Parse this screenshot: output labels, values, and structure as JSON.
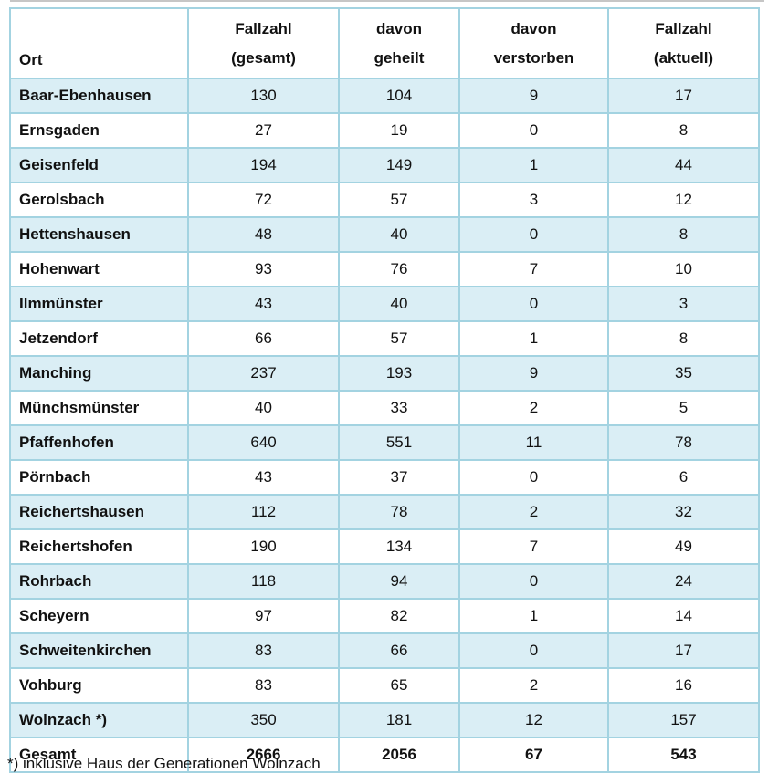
{
  "colors": {
    "row_shade": "#daeef5",
    "table_border": "#a3d3e1",
    "top_rule": "#c6c6c6",
    "text": "#111111"
  },
  "table": {
    "headers": [
      {
        "lines": [
          "Ort"
        ]
      },
      {
        "lines": [
          "Fallzahl",
          "(gesamt)"
        ]
      },
      {
        "lines": [
          "davon",
          "geheilt"
        ]
      },
      {
        "lines": [
          "davon",
          "verstorben"
        ]
      },
      {
        "lines": [
          "Fallzahl",
          "(aktuell)"
        ]
      }
    ],
    "rows": [
      {
        "ort": "Baar-Ebenhausen",
        "gesamt": "130",
        "geheilt": "104",
        "verstorben": "9",
        "aktuell": "17"
      },
      {
        "ort": "Ernsgaden",
        "gesamt": "27",
        "geheilt": "19",
        "verstorben": "0",
        "aktuell": "8"
      },
      {
        "ort": "Geisenfeld",
        "gesamt": "194",
        "geheilt": "149",
        "verstorben": "1",
        "aktuell": "44"
      },
      {
        "ort": "Gerolsbach",
        "gesamt": "72",
        "geheilt": "57",
        "verstorben": "3",
        "aktuell": "12"
      },
      {
        "ort": "Hettenshausen",
        "gesamt": "48",
        "geheilt": "40",
        "verstorben": "0",
        "aktuell": "8"
      },
      {
        "ort": "Hohenwart",
        "gesamt": "93",
        "geheilt": "76",
        "verstorben": "7",
        "aktuell": "10"
      },
      {
        "ort": "Ilmmünster",
        "gesamt": "43",
        "geheilt": "40",
        "verstorben": "0",
        "aktuell": "3"
      },
      {
        "ort": "Jetzendorf",
        "gesamt": "66",
        "geheilt": "57",
        "verstorben": "1",
        "aktuell": "8"
      },
      {
        "ort": "Manching",
        "gesamt": "237",
        "geheilt": "193",
        "verstorben": "9",
        "aktuell": "35"
      },
      {
        "ort": "Münchsmünster",
        "gesamt": "40",
        "geheilt": "33",
        "verstorben": "2",
        "aktuell": "5"
      },
      {
        "ort": "Pfaffenhofen",
        "gesamt": "640",
        "geheilt": "551",
        "verstorben": "11",
        "aktuell": "78"
      },
      {
        "ort": "Pörnbach",
        "gesamt": "43",
        "geheilt": "37",
        "verstorben": "0",
        "aktuell": "6"
      },
      {
        "ort": "Reichertshausen",
        "gesamt": "112",
        "geheilt": "78",
        "verstorben": "2",
        "aktuell": "32"
      },
      {
        "ort": "Reichertshofen",
        "gesamt": "190",
        "geheilt": "134",
        "verstorben": "7",
        "aktuell": "49"
      },
      {
        "ort": "Rohrbach",
        "gesamt": "118",
        "geheilt": "94",
        "verstorben": "0",
        "aktuell": "24"
      },
      {
        "ort": "Scheyern",
        "gesamt": "97",
        "geheilt": "82",
        "verstorben": "1",
        "aktuell": "14"
      },
      {
        "ort": "Schweitenkirchen",
        "gesamt": "83",
        "geheilt": "66",
        "verstorben": "0",
        "aktuell": "17"
      },
      {
        "ort": "Vohburg",
        "gesamt": "83",
        "geheilt": "65",
        "verstorben": "2",
        "aktuell": "16"
      },
      {
        "ort": "Wolnzach *)",
        "gesamt": "350",
        "geheilt": "181",
        "verstorben": "12",
        "aktuell": "157"
      }
    ],
    "total_row": {
      "ort": "Gesamt",
      "gesamt": "2666",
      "geheilt": "2056",
      "verstorben": "67",
      "aktuell": "543"
    }
  },
  "footnote": "*) inklusive Haus der Generationen Wolnzach"
}
